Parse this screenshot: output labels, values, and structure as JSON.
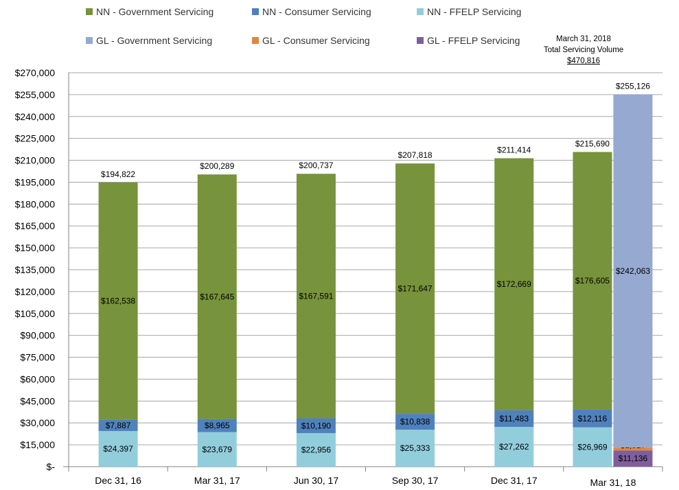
{
  "chart_data": {
    "type": "bar",
    "stacked": true,
    "title": "",
    "xlabel": "",
    "ylabel": "",
    "ylim": [
      0,
      270000
    ],
    "ytick_step": 15000,
    "yticks": [
      "$-",
      "$15,000",
      "$30,000",
      "$45,000",
      "$60,000",
      "$75,000",
      "$90,000",
      "$105,000",
      "$120,000",
      "$135,000",
      "$150,000",
      "$165,000",
      "$180,000",
      "$195,000",
      "$210,000",
      "$225,000",
      "$240,000",
      "$255,000",
      "$270,000"
    ],
    "grid": true,
    "legend_position": "top",
    "categories": [
      "Dec 31, 16",
      "Mar 31, 17",
      "Jun 30, 17",
      "Sep 30, 17",
      "Dec 31, 17",
      "Mar 31, 18"
    ],
    "series": [
      {
        "name": "NN - FFELP Servicing",
        "color": "#92CDDC",
        "values": [
          24397,
          23679,
          22956,
          25333,
          27262,
          26969
        ],
        "labels": [
          "$24,397",
          "$23,679",
          "$22,956",
          "$25,333",
          "$27,262",
          "$26,969"
        ]
      },
      {
        "name": "NN - Consumer Servicing",
        "color": "#4F81BD",
        "values": [
          7887,
          8965,
          10190,
          10838,
          11483,
          12116
        ],
        "labels": [
          "$7,887",
          "$8,965",
          "$10,190",
          "$10,838",
          "$11,483",
          "$12,116"
        ]
      },
      {
        "name": "NN - Government Servicing",
        "color": "#77933C",
        "values": [
          162538,
          167645,
          167591,
          171647,
          172669,
          176605
        ],
        "labels": [
          "$162,538",
          "$167,645",
          "$167,591",
          "$171,647",
          "$172,669",
          "$176,605"
        ]
      }
    ],
    "totals": [
      "$194,822",
      "$200,289",
      "$200,737",
      "$207,818",
      "$211,414",
      "$215,690"
    ],
    "extra_bar": {
      "category": "Mar 31, 18",
      "series": [
        {
          "name": "GL - FFELP Servicing",
          "color": "#7F5F9B",
          "value": 11136,
          "label": "$11,136"
        },
        {
          "name": "GL - Consumer Servicing",
          "color": "#E0873F",
          "value": 1927,
          "label": "$1,927"
        },
        {
          "name": "GL - Government Servicing",
          "color": "#95A9D1",
          "value": 242063,
          "label": "$242,063"
        }
      ],
      "total": "$255,126"
    },
    "legend": [
      {
        "name": "NN - Government Servicing",
        "color": "#77933C"
      },
      {
        "name": "NN - Consumer Servicing",
        "color": "#4F81BD"
      },
      {
        "name": "NN - FFELP Servicing",
        "color": "#92CDDC"
      },
      {
        "name": "GL - Government Servicing",
        "color": "#95A9D1"
      },
      {
        "name": "GL - Consumer Servicing",
        "color": "#E0873F"
      },
      {
        "name": "GL - FFELP Servicing",
        "color": "#7F5F9B"
      }
    ],
    "annotation": {
      "line1": "March 31, 2018",
      "line2": "Total Servicing Volume",
      "total": "$470,816"
    }
  }
}
